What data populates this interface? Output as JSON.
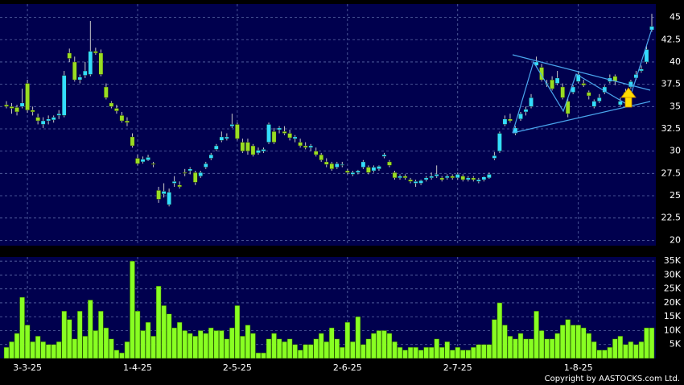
{
  "chart_data": [
    {
      "type": "candlestick",
      "up_color": "#33ddff",
      "down_color": "#99dd22",
      "ylim": [
        19.4,
        46.5
      ],
      "yticks": [
        20,
        22.5,
        25,
        27.5,
        30,
        32.5,
        35,
        37.5,
        40,
        42.5,
        45
      ],
      "grid": true,
      "ohlc": [
        [
          35.2,
          35.6,
          34.8,
          35.0
        ],
        [
          35.0,
          35.4,
          34.2,
          34.8
        ],
        [
          34.9,
          35.2,
          34.0,
          34.4
        ],
        [
          35.0,
          37.0,
          34.8,
          35.4
        ],
        [
          37.6,
          38.0,
          34.3,
          34.6
        ],
        [
          34.6,
          35.0,
          34.0,
          34.4
        ],
        [
          33.8,
          34.2,
          33.0,
          33.4
        ],
        [
          33.0,
          33.8,
          32.6,
          33.4
        ],
        [
          33.4,
          34.0,
          33.0,
          33.6
        ],
        [
          33.5,
          34.0,
          33.2,
          33.8
        ],
        [
          34.0,
          34.6,
          33.6,
          34.2
        ],
        [
          34.0,
          39.0,
          33.8,
          38.5
        ],
        [
          41.0,
          41.5,
          40.0,
          40.4
        ],
        [
          40.0,
          40.6,
          37.8,
          38.0
        ],
        [
          38.0,
          38.6,
          37.6,
          38.3
        ],
        [
          38.5,
          40.0,
          38.2,
          39.0
        ],
        [
          38.6,
          44.6,
          38.4,
          41.2
        ],
        [
          41.2,
          41.6,
          40.8,
          41.0
        ],
        [
          41.0,
          41.4,
          38.4,
          38.6
        ],
        [
          37.2,
          37.6,
          35.8,
          36.0
        ],
        [
          35.4,
          35.6,
          34.8,
          35.0
        ],
        [
          34.8,
          35.2,
          34.2,
          34.5
        ],
        [
          34.0,
          34.4,
          33.2,
          33.4
        ],
        [
          33.4,
          33.8,
          32.8,
          33.2
        ],
        [
          31.6,
          32.0,
          30.4,
          30.6
        ],
        [
          29.2,
          29.6,
          28.4,
          28.6
        ],
        [
          28.8,
          29.4,
          28.6,
          29.1
        ],
        [
          29.0,
          29.6,
          28.9,
          29.3
        ],
        [
          28.6,
          28.8,
          28.2,
          28.5
        ],
        [
          25.6,
          26.0,
          24.2,
          24.6
        ],
        [
          25.2,
          26.4,
          24.8,
          25.5
        ],
        [
          24.0,
          25.8,
          23.8,
          25.4
        ],
        [
          26.4,
          27.2,
          26.0,
          26.6
        ],
        [
          26.2,
          26.6,
          25.8,
          26.0
        ],
        [
          27.6,
          28.0,
          27.2,
          27.5
        ],
        [
          27.8,
          28.2,
          27.4,
          28.0
        ],
        [
          27.6,
          27.8,
          26.2,
          26.5
        ],
        [
          27.2,
          27.8,
          27.0,
          27.6
        ],
        [
          28.2,
          28.8,
          28.0,
          28.6
        ],
        [
          29.2,
          29.8,
          29.0,
          29.6
        ],
        [
          30.2,
          30.8,
          30.0,
          30.6
        ],
        [
          31.2,
          32.2,
          31.0,
          31.6
        ],
        [
          31.4,
          32.0,
          31.2,
          31.6
        ],
        [
          32.8,
          34.2,
          32.6,
          33.0
        ],
        [
          33.0,
          33.2,
          31.2,
          31.4
        ],
        [
          31.0,
          31.4,
          29.8,
          30.0
        ],
        [
          31.0,
          31.4,
          29.6,
          30.0
        ],
        [
          30.6,
          30.8,
          29.4,
          29.6
        ],
        [
          29.8,
          30.4,
          29.6,
          30.1
        ],
        [
          30.0,
          30.4,
          29.8,
          30.2
        ],
        [
          31.0,
          33.2,
          30.8,
          33.0
        ],
        [
          32.2,
          32.6,
          30.8,
          31.0
        ],
        [
          32.4,
          32.8,
          32.0,
          32.6
        ],
        [
          32.2,
          32.8,
          31.8,
          32.0
        ],
        [
          32.0,
          32.4,
          31.2,
          31.5
        ],
        [
          31.4,
          31.8,
          31.0,
          31.6
        ],
        [
          31.0,
          31.4,
          30.4,
          30.6
        ],
        [
          30.6,
          31.0,
          30.2,
          30.4
        ],
        [
          30.4,
          30.8,
          30.0,
          30.6
        ],
        [
          30.0,
          30.4,
          29.4,
          29.6
        ],
        [
          29.6,
          29.8,
          28.8,
          29.0
        ],
        [
          28.8,
          29.2,
          28.2,
          28.5
        ],
        [
          28.6,
          28.8,
          27.8,
          28.0
        ],
        [
          28.2,
          28.8,
          28.0,
          28.6
        ],
        [
          28.4,
          28.8,
          28.2,
          28.5
        ],
        [
          27.8,
          28.0,
          27.4,
          27.6
        ],
        [
          27.4,
          27.8,
          27.2,
          27.6
        ],
        [
          27.6,
          27.9,
          27.4,
          27.8
        ],
        [
          28.2,
          29.0,
          28.0,
          28.8
        ],
        [
          28.2,
          28.4,
          27.4,
          27.6
        ],
        [
          27.8,
          28.4,
          27.6,
          28.2
        ],
        [
          28.0,
          28.4,
          27.8,
          28.3
        ],
        [
          29.4,
          29.8,
          29.2,
          29.6
        ],
        [
          28.8,
          29.0,
          28.2,
          28.4
        ],
        [
          27.6,
          27.8,
          26.8,
          27.0
        ],
        [
          27.0,
          27.4,
          26.8,
          27.2
        ],
        [
          27.2,
          27.4,
          26.8,
          27.0
        ],
        [
          26.8,
          27.0,
          26.4,
          26.6
        ],
        [
          26.4,
          26.8,
          26.0,
          26.6
        ],
        [
          26.4,
          26.8,
          26.2,
          26.7
        ],
        [
          26.8,
          27.2,
          26.6,
          27.0
        ],
        [
          27.0,
          27.6,
          26.8,
          27.2
        ],
        [
          27.2,
          28.4,
          27.0,
          27.4
        ],
        [
          27.0,
          27.2,
          26.6,
          26.8
        ],
        [
          27.0,
          27.4,
          26.8,
          27.2
        ],
        [
          27.2,
          27.4,
          26.8,
          27.0
        ],
        [
          27.0,
          27.6,
          26.8,
          27.4
        ],
        [
          27.2,
          27.4,
          26.6,
          26.8
        ],
        [
          26.8,
          27.2,
          26.6,
          27.0
        ],
        [
          27.0,
          27.2,
          26.6,
          26.8
        ],
        [
          26.6,
          27.0,
          26.4,
          26.8
        ],
        [
          26.8,
          27.2,
          26.6,
          27.1
        ],
        [
          27.0,
          27.6,
          26.9,
          27.4
        ],
        [
          29.2,
          29.9,
          29.0,
          29.5
        ],
        [
          30.0,
          32.2,
          29.8,
          32.0
        ],
        [
          33.0,
          34.0,
          32.8,
          33.6
        ],
        [
          33.6,
          34.2,
          33.2,
          33.4
        ],
        [
          32.0,
          32.8,
          31.8,
          32.6
        ],
        [
          33.6,
          34.4,
          33.4,
          34.2
        ],
        [
          34.4,
          35.0,
          34.0,
          34.7
        ],
        [
          35.0,
          36.4,
          34.8,
          36.0
        ],
        [
          39.6,
          40.6,
          39.4,
          40.0
        ],
        [
          39.4,
          39.8,
          37.8,
          38.0
        ],
        [
          37.6,
          38.0,
          37.2,
          37.6
        ],
        [
          38.0,
          38.4,
          36.8,
          37.0
        ],
        [
          37.6,
          39.0,
          37.4,
          38.2
        ],
        [
          37.2,
          37.6,
          35.8,
          36.0
        ],
        [
          35.6,
          36.0,
          33.8,
          34.2
        ],
        [
          36.6,
          37.4,
          36.4,
          37.2
        ],
        [
          37.8,
          39.0,
          37.6,
          38.6
        ],
        [
          37.6,
          38.0,
          37.2,
          37.4
        ],
        [
          36.6,
          36.8,
          35.8,
          36.2
        ],
        [
          35.0,
          35.8,
          34.8,
          35.6
        ],
        [
          35.6,
          36.4,
          35.4,
          36.0
        ],
        [
          36.6,
          37.4,
          36.4,
          37.2
        ],
        [
          37.8,
          38.6,
          37.6,
          38.2
        ],
        [
          38.4,
          38.6,
          37.4,
          37.8
        ],
        [
          35.2,
          36.0,
          35.0,
          35.6
        ],
        [
          36.6,
          37.0,
          36.0,
          36.4
        ],
        [
          37.2,
          38.0,
          37.0,
          37.8
        ],
        [
          38.2,
          39.0,
          38.0,
          38.6
        ],
        [
          39.0,
          39.6,
          38.8,
          39.2
        ],
        [
          40.0,
          41.8,
          39.8,
          41.4
        ],
        [
          43.6,
          45.4,
          43.4,
          44.0
        ]
      ]
    },
    {
      "type": "bar",
      "color": "#88ff22",
      "ylim": [
        0,
        36500
      ],
      "yticks": [
        {
          "value": 5000,
          "label": "5K"
        },
        {
          "value": 10000,
          "label": "10K"
        },
        {
          "value": 15000,
          "label": "15K"
        },
        {
          "value": 20000,
          "label": "20K"
        },
        {
          "value": 25000,
          "label": "25K"
        },
        {
          "value": 30000,
          "label": "30K"
        },
        {
          "value": 35000,
          "label": "35K"
        }
      ],
      "grid": true,
      "categories": [
        null,
        null,
        null,
        null,
        "3-3-25",
        null,
        null,
        null,
        null,
        null,
        null,
        null,
        null,
        null,
        null,
        null,
        null,
        null,
        null,
        null,
        null,
        null,
        null,
        null,
        null,
        "1-4-25",
        null,
        null,
        null,
        null,
        null,
        null,
        null,
        null,
        null,
        null,
        null,
        null,
        null,
        null,
        null,
        null,
        null,
        null,
        "2-5-25",
        null,
        null,
        null,
        null,
        null,
        null,
        null,
        null,
        null,
        null,
        null,
        null,
        null,
        null,
        null,
        null,
        null,
        null,
        null,
        null,
        "2-6-25",
        null,
        null,
        null,
        null,
        null,
        null,
        null,
        null,
        null,
        null,
        null,
        null,
        null,
        null,
        null,
        null,
        null,
        null,
        null,
        null,
        "2-7-25",
        null,
        null,
        null,
        null,
        null,
        null,
        null,
        null,
        null,
        null,
        null,
        null,
        null,
        null,
        null,
        null,
        null,
        null,
        null,
        null,
        null,
        null,
        "1-8-25",
        null,
        null,
        null,
        null,
        null,
        null,
        null,
        null,
        null,
        null,
        null,
        null,
        null,
        null
      ],
      "values": [
        4000,
        6000,
        9000,
        22000,
        12000,
        6000,
        8000,
        6000,
        5000,
        5000,
        6000,
        17000,
        14000,
        7000,
        17000,
        8000,
        21000,
        10000,
        17000,
        11000,
        7000,
        3000,
        2000,
        6000,
        35000,
        17000,
        10000,
        13000,
        8000,
        26000,
        19000,
        16000,
        11000,
        13000,
        10000,
        9000,
        8000,
        10000,
        9000,
        11000,
        10000,
        10000,
        7000,
        11000,
        19000,
        8000,
        12000,
        9000,
        2000,
        2000,
        7000,
        9000,
        7000,
        6000,
        7000,
        5000,
        3000,
        5000,
        5000,
        7000,
        9000,
        6000,
        11000,
        7000,
        4000,
        13000,
        6000,
        15000,
        5000,
        7000,
        9000,
        10000,
        10000,
        9000,
        6000,
        4000,
        3000,
        4000,
        4000,
        3000,
        4000,
        4000,
        7000,
        4000,
        6000,
        3000,
        4000,
        3000,
        3000,
        4000,
        5000,
        5000,
        5000,
        14000,
        20000,
        12000,
        8000,
        7000,
        9000,
        7000,
        7000,
        17000,
        10000,
        7000,
        7000,
        9000,
        12000,
        14000,
        12000,
        12000,
        11000,
        9000,
        6000,
        3000,
        3000,
        4000,
        7000,
        8000,
        5000,
        6000,
        5000,
        6000,
        11000,
        11000
      ]
    }
  ],
  "copyright": "Copyright by AASTOCKS.com Ltd."
}
